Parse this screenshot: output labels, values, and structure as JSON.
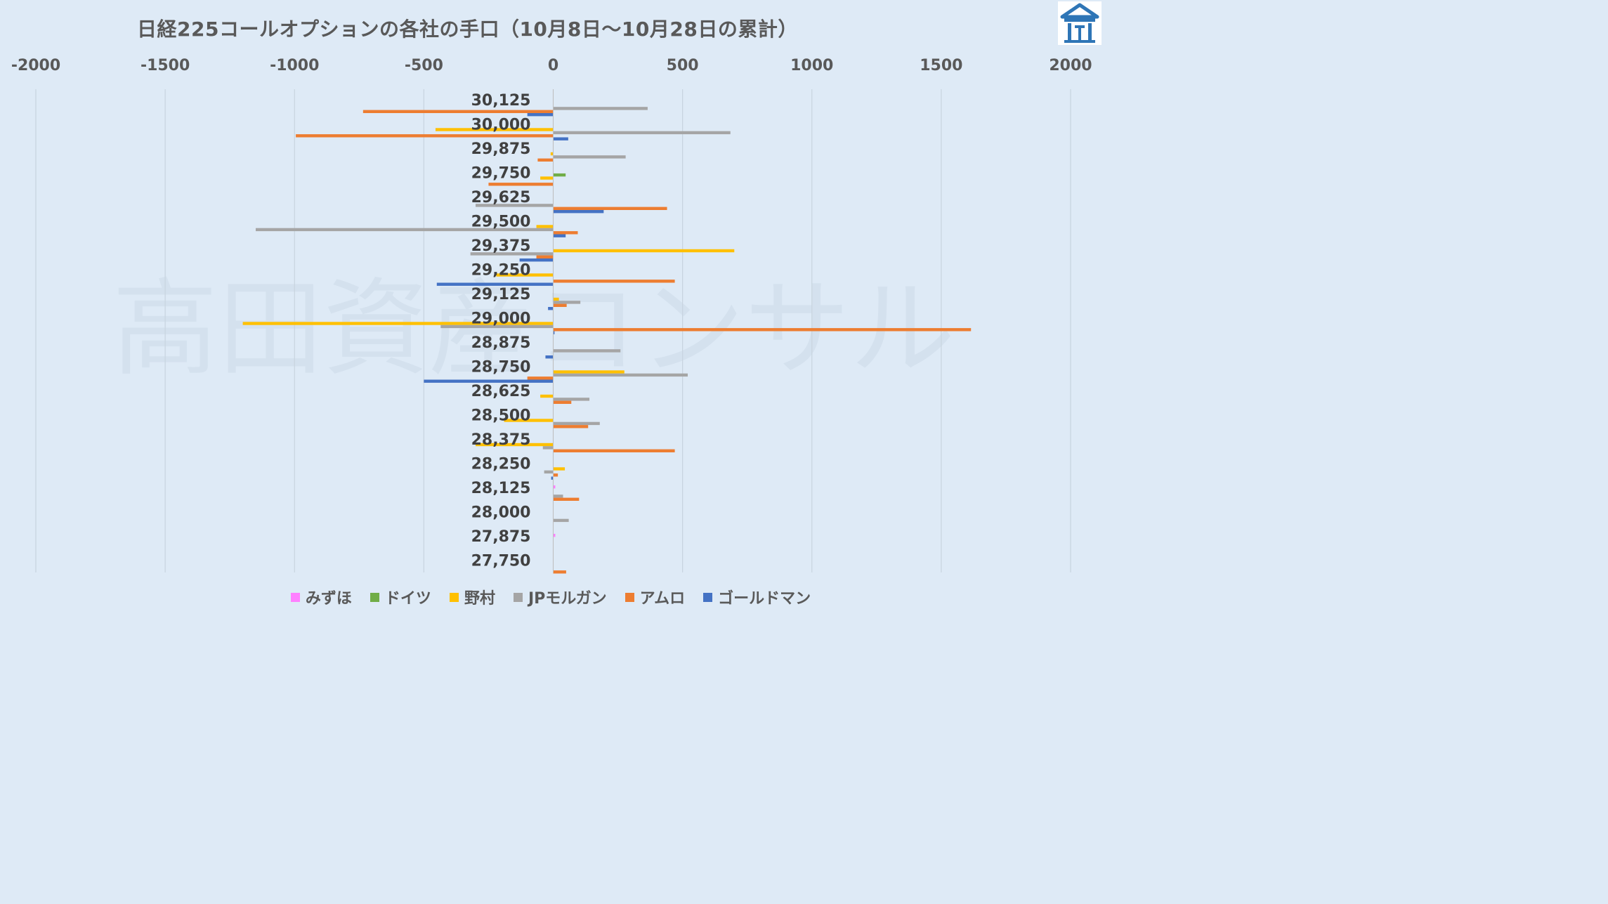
{
  "chart_data": {
    "type": "bar",
    "orientation": "horizontal",
    "title": "日経225コールオプションの各社の手口（10月8日～10月28日の累計）",
    "xlim": [
      -2000,
      2000
    ],
    "x_ticks": [
      "-2000",
      "-1500",
      "-1000",
      "-500",
      "0",
      "500",
      "1000",
      "1500",
      "2000"
    ],
    "x_tick_values": [
      -2000,
      -1500,
      -1000,
      -500,
      0,
      500,
      1000,
      1500,
      2000
    ],
    "axis_position": "top",
    "grid": true,
    "legend_position": "bottom",
    "watermark": "高田資産コンサル",
    "categories": [
      "30,125",
      "30,000",
      "29,875",
      "29,750",
      "29,625",
      "29,500",
      "29,375",
      "29,250",
      "29,125",
      "29,000",
      "28,875",
      "28,750",
      "28,625",
      "28,500",
      "28,375",
      "28,250",
      "28,125",
      "28,000",
      "27,875",
      "27,750"
    ],
    "series": [
      {
        "name": "みずほ",
        "color": "#ff80ff",
        "values": [
          0,
          0,
          0,
          0,
          0,
          0,
          0,
          0,
          0,
          0,
          0,
          0,
          0,
          0,
          0,
          0,
          8,
          0,
          8,
          0
        ]
      },
      {
        "name": "ドイツ",
        "color": "#70ad47",
        "values": [
          0,
          0,
          0,
          48,
          0,
          0,
          0,
          0,
          0,
          0,
          0,
          0,
          0,
          0,
          0,
          0,
          0,
          0,
          0,
          0
        ]
      },
      {
        "name": "野村",
        "color": "#ffc000",
        "values": [
          0,
          -455,
          -10,
          -50,
          0,
          -65,
          700,
          -220,
          22,
          -1200,
          0,
          275,
          -50,
          -190,
          -300,
          45,
          0,
          0,
          0,
          0
        ]
      },
      {
        "name": "JPモルガン",
        "color": "#a5a5a5",
        "values": [
          365,
          685,
          280,
          0,
          -300,
          -1150,
          -320,
          0,
          105,
          -435,
          260,
          520,
          140,
          180,
          -40,
          -35,
          38,
          60,
          0,
          0
        ]
      },
      {
        "name": "アムロ",
        "color": "#ed7d31",
        "values": [
          -735,
          -995,
          -60,
          -250,
          440,
          95,
          -65,
          470,
          52,
          1615,
          0,
          -100,
          70,
          135,
          470,
          18,
          100,
          0,
          0,
          50
        ]
      },
      {
        "name": "ゴールドマン",
        "color": "#4472c4",
        "values": [
          -100,
          58,
          0,
          0,
          195,
          48,
          -130,
          -450,
          -20,
          5,
          -30,
          -500,
          0,
          0,
          0,
          -8,
          0,
          0,
          0,
          0
        ]
      }
    ]
  }
}
